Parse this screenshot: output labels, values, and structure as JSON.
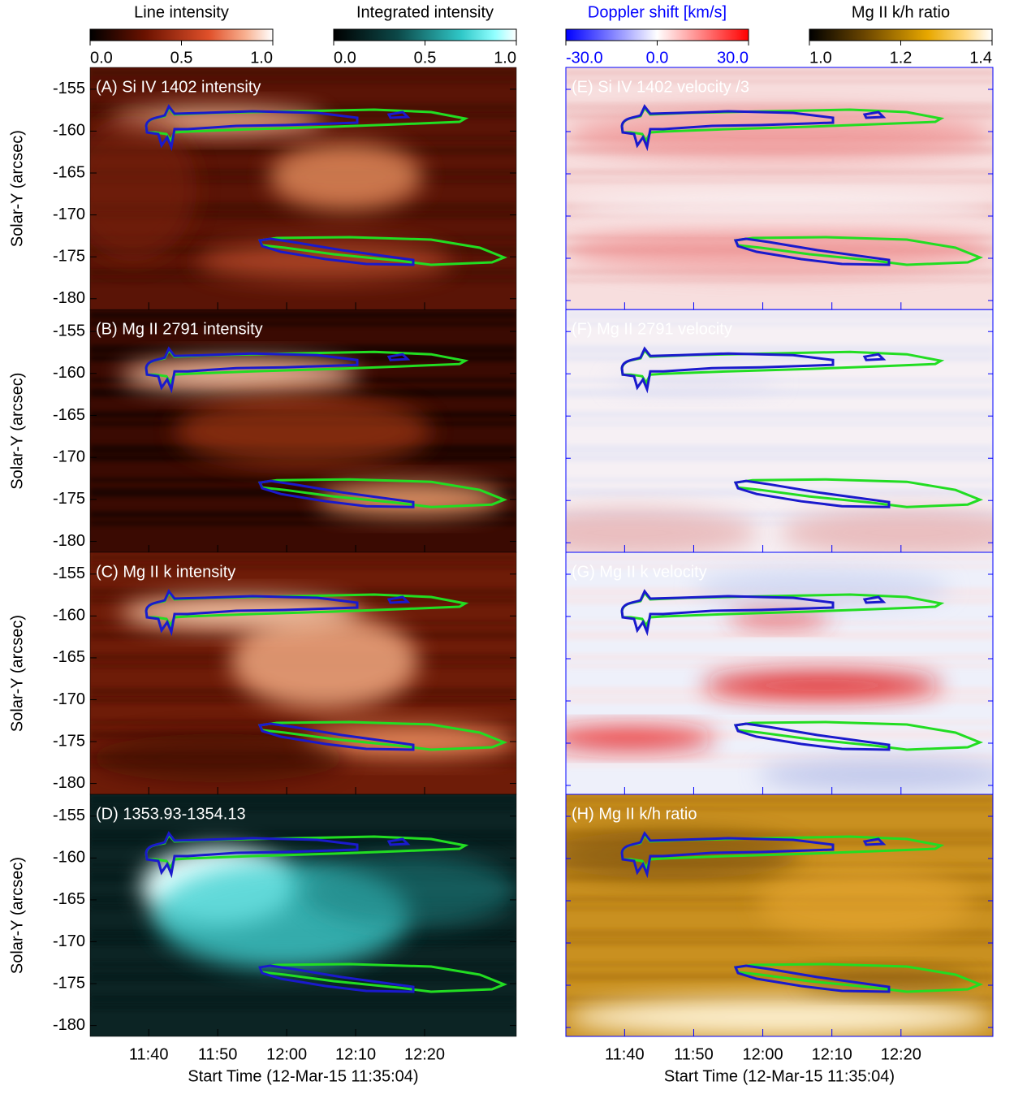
{
  "chart_data": [
    {
      "type": "colorbar",
      "title": "Line intensity",
      "xlim": [
        0,
        1
      ],
      "xticks": [
        {
          "value": 0,
          "label": "0.0"
        },
        {
          "value": 0.5,
          "label": "0.5"
        },
        {
          "value": 1,
          "label": "1.0"
        }
      ]
    },
    {
      "type": "colorbar",
      "title": "Integrated intensity",
      "xlim": [
        0,
        1
      ],
      "xticks": [
        {
          "value": 0,
          "label": "0.0"
        },
        {
          "value": 0.5,
          "label": "0.5"
        },
        {
          "value": 1,
          "label": "1.0"
        }
      ]
    },
    {
      "type": "colorbar",
      "title": "Doppler shift [km/s]",
      "xlim": [
        -30,
        30
      ],
      "xticks": [
        {
          "value": -30,
          "label": "-30.0"
        },
        {
          "value": 0,
          "label": "0.0"
        },
        {
          "value": 30,
          "label": "30.0"
        }
      ]
    },
    {
      "type": "colorbar",
      "title": "Mg II k/h ratio",
      "xlim": [
        1,
        1.4
      ],
      "xticks": [
        {
          "value": 1,
          "label": "1.0"
        },
        {
          "value": 1.2,
          "label": "1.2"
        },
        {
          "value": 1.4,
          "label": "1.4"
        }
      ]
    },
    {
      "type": "heatmap",
      "title": "(A) Si IV 1402 intensity",
      "ylabel": "Solar-Y (arcsec)",
      "ylim": [
        -181.3,
        -152.4
      ],
      "yticks": [
        -155,
        -160,
        -165,
        -170,
        -175,
        -180
      ]
    },
    {
      "type": "heatmap",
      "title": "(B) Mg II 2791 intensity",
      "ylabel": "Solar-Y (arcsec)",
      "ylim": [
        -181.3,
        -152.4
      ],
      "yticks": [
        -155,
        -160,
        -165,
        -170,
        -175,
        -180
      ]
    },
    {
      "type": "heatmap",
      "title": "(C) Mg II k intensity",
      "ylabel": "Solar-Y (arcsec)",
      "ylim": [
        -181.3,
        -152.4
      ],
      "yticks": [
        -155,
        -160,
        -165,
        -170,
        -175,
        -180
      ]
    },
    {
      "type": "heatmap",
      "title": "(D) 1353.93-1354.13",
      "ylabel": "Solar-Y (arcsec)",
      "ylim": [
        -181.3,
        -152.4
      ],
      "yticks": [
        -155,
        -160,
        -165,
        -170,
        -175,
        -180
      ],
      "xlabel": "Start Time (12-Mar-15 11:35:04)",
      "xlim": [
        31.5,
        93.3
      ],
      "xticks": [
        {
          "value": 40,
          "label": "11:40"
        },
        {
          "value": 50,
          "label": "11:50"
        },
        {
          "value": 60,
          "label": "12:00"
        },
        {
          "value": 70,
          "label": "12:10"
        },
        {
          "value": 80,
          "label": "12:20"
        }
      ]
    },
    {
      "type": "heatmap",
      "title": "(E) Si IV 1402 velocity /3"
    },
    {
      "type": "heatmap",
      "title": "(F) Mg II 2791 velocity"
    },
    {
      "type": "heatmap",
      "title": "(G) Mg II k velocity"
    },
    {
      "type": "heatmap",
      "title": "(H) Mg II k/h ratio",
      "xlabel": "Start Time (12-Mar-15 11:35:04)",
      "xlim": [
        31.5,
        93.3
      ],
      "xticks": [
        {
          "value": 40,
          "label": "11:40"
        },
        {
          "value": 50,
          "label": "11:50"
        },
        {
          "value": 60,
          "label": "12:00"
        },
        {
          "value": 70,
          "label": "12:10"
        },
        {
          "value": 80,
          "label": "12:20"
        }
      ]
    }
  ]
}
